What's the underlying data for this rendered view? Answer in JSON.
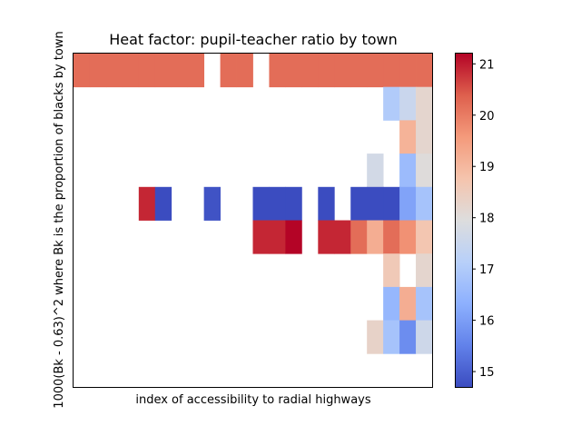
{
  "chart_data": {
    "type": "heatmap",
    "title": "Heat factor: pupil-teacher ratio by town",
    "xlabel": "index of accessibility to radial highways",
    "ylabel": "1000(Bk - 0.63)^2 where Bk is the proportion of blacks by town",
    "x_ticks_shown": false,
    "y_ticks_shown": false,
    "grid": false,
    "colormap": "coolwarm",
    "colorbar": {
      "range": [
        14.7,
        21.2
      ],
      "ticks": [
        15,
        16,
        17,
        18,
        19,
        20,
        21
      ]
    },
    "n_columns": 22,
    "n_rows": 10,
    "row_order": "top-to-bottom",
    "cells": [
      [
        20.2,
        20.2,
        20.2,
        20.2,
        20.2,
        20.2,
        20.2,
        20.2,
        null,
        20.2,
        20.2,
        null,
        20.2,
        20.2,
        20.2,
        20.2,
        20.2,
        20.2,
        20.2,
        20.2,
        20.2,
        20.2
      ],
      [
        null,
        null,
        null,
        null,
        null,
        null,
        null,
        null,
        null,
        null,
        null,
        null,
        null,
        null,
        null,
        null,
        null,
        null,
        null,
        17.0,
        17.5,
        18.2
      ],
      [
        null,
        null,
        null,
        null,
        null,
        null,
        null,
        null,
        null,
        null,
        null,
        null,
        null,
        null,
        null,
        null,
        null,
        null,
        null,
        null,
        19.1,
        18.2
      ],
      [
        null,
        null,
        null,
        null,
        null,
        null,
        null,
        null,
        null,
        null,
        null,
        null,
        null,
        null,
        null,
        null,
        null,
        null,
        17.7,
        null,
        16.6,
        18.0
      ],
      [
        null,
        null,
        null,
        null,
        20.9,
        14.7,
        null,
        null,
        14.8,
        null,
        null,
        14.7,
        14.7,
        14.7,
        null,
        14.7,
        null,
        14.7,
        14.7,
        14.7,
        16.1,
        16.8
      ],
      [
        null,
        null,
        null,
        null,
        null,
        null,
        null,
        null,
        null,
        null,
        null,
        20.9,
        20.9,
        21.2,
        null,
        20.9,
        20.9,
        20.2,
        19.2,
        20.2,
        19.7,
        18.7
      ],
      [
        null,
        null,
        null,
        null,
        null,
        null,
        null,
        null,
        null,
        null,
        null,
        null,
        null,
        null,
        null,
        null,
        null,
        null,
        null,
        18.6,
        null,
        18.2
      ],
      [
        null,
        null,
        null,
        null,
        null,
        null,
        null,
        null,
        null,
        null,
        null,
        null,
        null,
        null,
        null,
        null,
        null,
        null,
        null,
        16.5,
        19.2,
        16.8
      ],
      [
        null,
        null,
        null,
        null,
        null,
        null,
        null,
        null,
        null,
        null,
        null,
        null,
        null,
        null,
        null,
        null,
        null,
        null,
        18.3,
        16.8,
        15.7,
        17.6
      ],
      [
        null,
        null,
        null,
        null,
        null,
        null,
        null,
        null,
        null,
        null,
        null,
        null,
        null,
        null,
        null,
        null,
        null,
        null,
        null,
        null,
        null,
        null
      ]
    ]
  }
}
